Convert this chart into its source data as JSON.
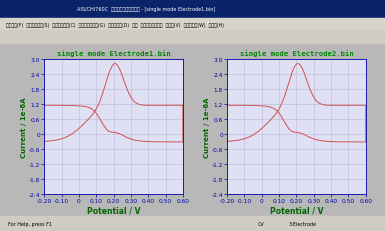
{
  "title1": "single mode Electrode1.bin",
  "title2": "single mode Electrode2.bin",
  "xlabel": "Potential / V",
  "ylabel": "Current / 1e-6A",
  "xlim": [
    -0.2,
    0.6
  ],
  "ylim": [
    -2.4,
    3.0
  ],
  "xtick_vals": [
    -0.2,
    -0.1,
    0.0,
    0.1,
    0.2,
    0.3,
    0.4,
    0.5,
    0.6
  ],
  "xtick_labels": [
    "-0.20",
    "-0.10",
    "0",
    "0.10",
    "0.20",
    "0.30",
    "0.40",
    "0.50",
    "0.60"
  ],
  "ytick_vals": [
    -2.4,
    -1.8,
    -1.2,
    -0.6,
    0.0,
    0.6,
    1.2,
    1.8,
    2.4,
    3.0
  ],
  "ytick_labels": [
    "-2.4",
    "-1.8",
    "-1.2",
    "-0.6",
    "0",
    "0.6",
    "1.2",
    "1.8",
    "2.4",
    "3.0"
  ],
  "curve_color": "#d05050",
  "plot_bg": "#e0e0f4",
  "grid_color": "#b8b8d8",
  "title_color": "#008800",
  "label_color": "#006600",
  "tick_color": "#0000aa",
  "window_bg": "#b8b8b8",
  "toolbar_bg": "#d0d0c8",
  "titlebar_bg": "#0a246a",
  "titlebar_text": "AIS/CHI760C  電気化学アナライザー - [single mode Electrode1.bin]",
  "menu_items": [
    "ファイル(F)  セットアップ(S)  コントロール(C)  グラフィックス(G)  データ分析(D)  分析  シミュレーション  ビュー(V)  ウインドウ(W)  ヘルプ(H)"
  ],
  "status_help": "For Help, press F1",
  "status_cv": "CV",
  "status_electrode": "3-Electrode"
}
